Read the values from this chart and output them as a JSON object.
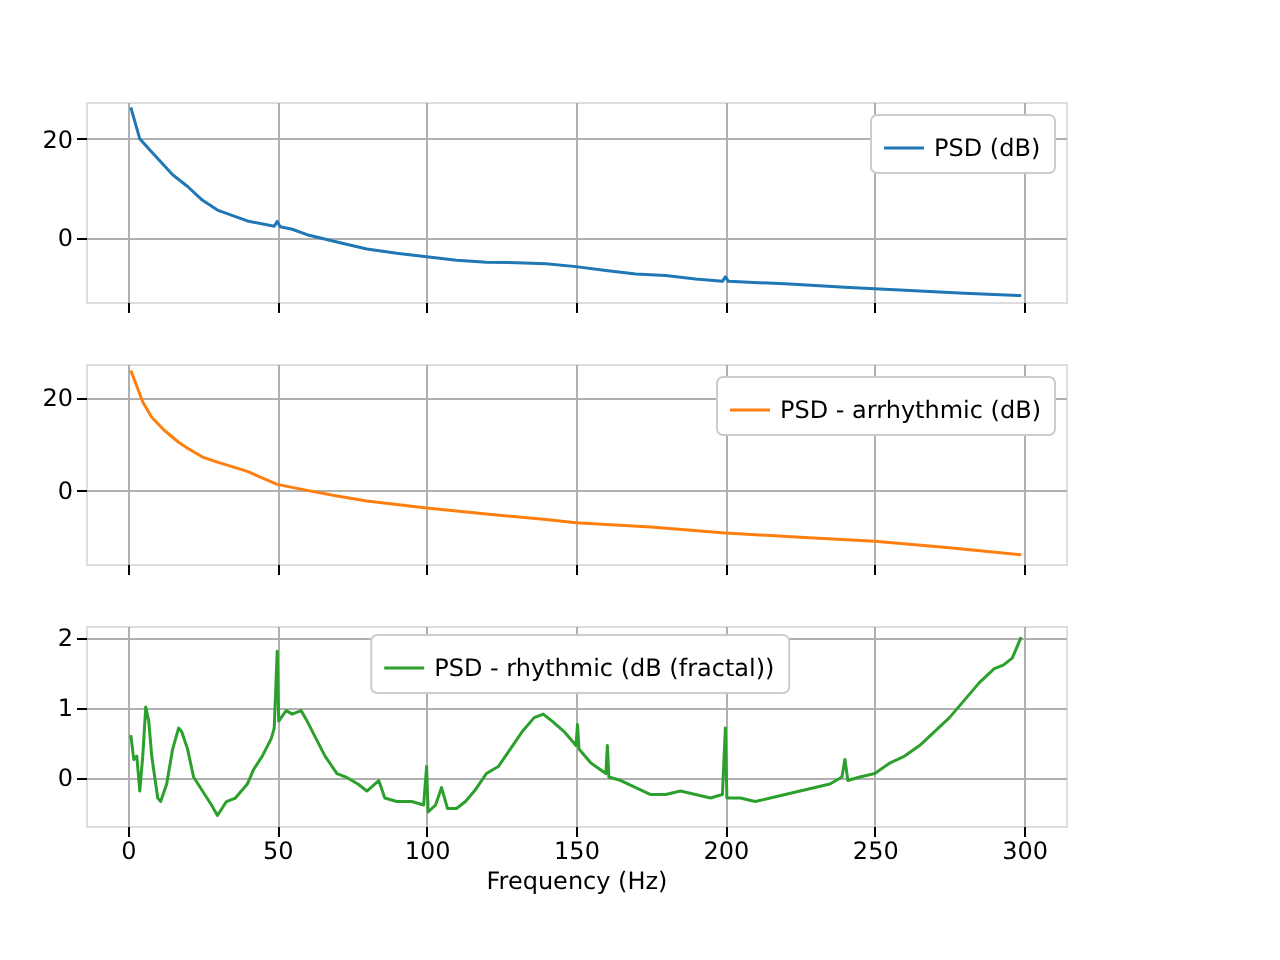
{
  "chart_data": [
    {
      "type": "line",
      "xlim": [
        -14,
        314
      ],
      "xticks": [
        0,
        50,
        100,
        150,
        200,
        250,
        300
      ],
      "ylim": [
        -13.2,
        27.5
      ],
      "yticks": [
        0,
        20
      ],
      "grid": true,
      "legend": "top right",
      "tick_labels": "y",
      "series": [
        {
          "name": "PSD (dB)",
          "color": "#1f77b4",
          "x": [
            1,
            4,
            7,
            10,
            15,
            20,
            25,
            30,
            40,
            49,
            50,
            51,
            55,
            60,
            70,
            80,
            90,
            100,
            110,
            120,
            130,
            140,
            150,
            160,
            170,
            180,
            190,
            199,
            200,
            201,
            220,
            240,
            260,
            280,
            299
          ],
          "values": [
            26.4,
            20,
            18,
            16,
            12.7,
            10.3,
            7.5,
            5.5,
            3.3,
            2.2,
            3.2,
            2.1,
            1.6,
            0.5,
            -1,
            -2.4,
            -3.3,
            -4,
            -4.7,
            -5.1,
            -5.2,
            -5.4,
            -6,
            -6.8,
            -7.5,
            -7.8,
            -8.5,
            -9,
            -8.1,
            -9,
            -9.5,
            -10.2,
            -10.8,
            -11.4,
            -11.9
          ]
        }
      ]
    },
    {
      "type": "line",
      "xlim": [
        -14,
        314
      ],
      "xticks": [
        0,
        50,
        100,
        150,
        200,
        250,
        300
      ],
      "ylim": [
        -16,
        27.2
      ],
      "yticks": [
        0,
        20
      ],
      "grid": true,
      "legend": "top right",
      "tick_labels": "y",
      "series": [
        {
          "name": "PSD - arrhythmic (dB)",
          "color": "#ff7f0e",
          "x": [
            1,
            3,
            5,
            8,
            12,
            17,
            20,
            25,
            30,
            40,
            50,
            60,
            70,
            80,
            100,
            120,
            140,
            150,
            175,
            200,
            225,
            250,
            275,
            299
          ],
          "values": [
            25.8,
            22.4,
            19,
            15.7,
            13,
            10.3,
            9,
            7.1,
            6,
            4,
            1.2,
            -0.1,
            -1.3,
            -2.4,
            -3.9,
            -5.2,
            -6.4,
            -7.1,
            -8,
            -9.3,
            -10.2,
            -11.1,
            -12.5,
            -14
          ]
        }
      ]
    },
    {
      "type": "line",
      "xlim": [
        -14,
        314
      ],
      "xticks": [
        0,
        50,
        100,
        150,
        200,
        250,
        300
      ],
      "ylim": [
        -0.7,
        2.16
      ],
      "yticks": [
        0,
        1,
        2
      ],
      "grid": true,
      "legend": "top",
      "xlabel": "Frequency (Hz)",
      "series": [
        {
          "name": "PSD - rhythmic (dB (fractal))",
          "color": "#2ca02c",
          "x": [
            1,
            2,
            3,
            4,
            5,
            6,
            7,
            8,
            10,
            11,
            13,
            15,
            17,
            18,
            20,
            22,
            25,
            28,
            30,
            33,
            36,
            40,
            42,
            45,
            48,
            49,
            50,
            50.5,
            53,
            55,
            58,
            60,
            63,
            66,
            70,
            73,
            77,
            80,
            84,
            86,
            90,
            95,
            99,
            100,
            100.5,
            103,
            105,
            107,
            110,
            113,
            116,
            120,
            124,
            128,
            132,
            136,
            139,
            142,
            146,
            150,
            150.5,
            151,
            155,
            160,
            160.5,
            161,
            165,
            170,
            175,
            180,
            185,
            190,
            195,
            199,
            200,
            200.5,
            205,
            210,
            215,
            220,
            225,
            230,
            235,
            239,
            240,
            241,
            245,
            250,
            255,
            260,
            265,
            270,
            275,
            280,
            285,
            290,
            293,
            296,
            299
          ],
          "values": [
            0.6,
            0.25,
            0.3,
            -0.2,
            0.3,
            1.0,
            0.8,
            0.3,
            -0.3,
            -0.35,
            -0.1,
            0.4,
            0.7,
            0.65,
            0.4,
            0.0,
            -0.2,
            -0.4,
            -0.55,
            -0.35,
            -0.3,
            -0.1,
            0.1,
            0.3,
            0.55,
            0.7,
            1.8,
            0.8,
            0.95,
            0.9,
            0.95,
            0.8,
            0.55,
            0.3,
            0.05,
            0.0,
            -0.1,
            -0.2,
            -0.05,
            -0.3,
            -0.35,
            -0.35,
            -0.4,
            0.15,
            -0.5,
            -0.4,
            -0.15,
            -0.45,
            -0.45,
            -0.35,
            -0.2,
            0.05,
            0.15,
            0.4,
            0.65,
            0.85,
            0.9,
            0.8,
            0.65,
            0.45,
            0.75,
            0.4,
            0.2,
            0.05,
            0.45,
            0.0,
            -0.05,
            -0.15,
            -0.25,
            -0.25,
            -0.2,
            -0.25,
            -0.3,
            -0.25,
            0.7,
            -0.3,
            -0.3,
            -0.35,
            -0.3,
            -0.25,
            -0.2,
            -0.15,
            -0.1,
            0.0,
            0.25,
            -0.05,
            0.0,
            0.05,
            0.2,
            0.3,
            0.45,
            0.65,
            0.85,
            1.1,
            1.35,
            1.55,
            1.6,
            1.7,
            2.0
          ]
        }
      ]
    }
  ]
}
